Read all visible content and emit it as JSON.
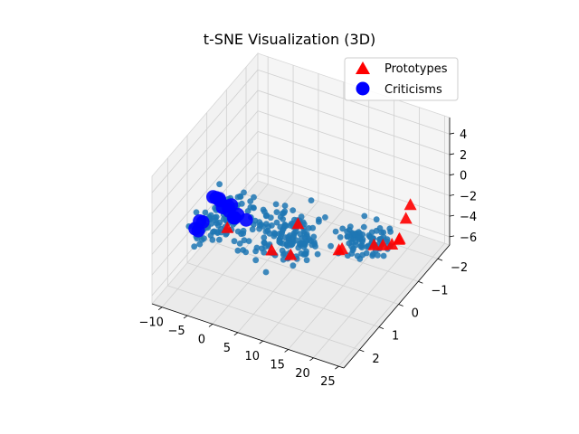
{
  "chart_data": {
    "type": "scatter",
    "projection": "3d",
    "title": "t-SNE Visualization (3D)",
    "xlabel": "",
    "ylabel": "",
    "zlabel": "",
    "xlim": [
      -12,
      26
    ],
    "ylim": [
      -2.6,
      2.8
    ],
    "zlim": [
      -6.8,
      5.6
    ],
    "xticks": [
      "−10",
      "−5",
      "0",
      "5",
      "10",
      "15",
      "20",
      "25"
    ],
    "xtick_values": [
      -10,
      -5,
      0,
      5,
      10,
      15,
      20,
      25
    ],
    "yticks": [
      "−2",
      "−1",
      "0",
      "1",
      "2"
    ],
    "ytick_values": [
      -2,
      -1,
      0,
      1,
      2
    ],
    "zticks": [
      "−6",
      "−4",
      "−2",
      "0",
      "2",
      "4"
    ],
    "ztick_values": [
      -6,
      -4,
      -2,
      0,
      2,
      4
    ],
    "grid": true,
    "legend_position": "top-right",
    "colors": {
      "points": "#1f77b4",
      "prototypes": "#ff0000",
      "criticisms": "#0000ff"
    },
    "legend": [
      {
        "label": "Prototypes",
        "marker": "triangle",
        "color": "#ff0000"
      },
      {
        "label": "Criticisms",
        "marker": "circle",
        "color": "#0000ff"
      }
    ],
    "series": [
      {
        "name": "Prototypes",
        "marker": "triangle",
        "points": [
          [
            -6,
            0.5,
            -3.5
          ],
          [
            2,
            0.3,
            -4.8
          ],
          [
            5,
            0.1,
            -5.2
          ],
          [
            13,
            -0.3,
            -4.3
          ],
          [
            14,
            -0.2,
            -3.8
          ],
          [
            18,
            -0.8,
            -4.1
          ],
          [
            19,
            -1.0,
            -4.4
          ],
          [
            20,
            -1.2,
            -4.6
          ],
          [
            21,
            -1.3,
            -4.2
          ],
          [
            21.5,
            -1.2,
            -3.8
          ],
          [
            22,
            -1.4,
            -2.2
          ],
          [
            22.5,
            -1.5,
            -1.0
          ],
          [
            8,
            0.5,
            -0.8
          ]
        ]
      },
      {
        "name": "Criticisms",
        "marker": "circle",
        "points": [
          [
            -8.5,
            1.5,
            -1.8
          ],
          [
            -8,
            1.4,
            -1.2
          ],
          [
            -7.5,
            1.6,
            -1.6
          ],
          [
            -7,
            1.5,
            -0.9
          ],
          [
            -3,
            2.0,
            3.3
          ],
          [
            -2.5,
            1.8,
            2.6
          ],
          [
            -2,
            2.1,
            3.6
          ],
          [
            -1.5,
            1.9,
            2.3
          ],
          [
            -1,
            2.2,
            3.9
          ],
          [
            -1,
            1.7,
            1.6
          ],
          [
            0,
            2.0,
            2.9
          ],
          [
            0.5,
            1.8,
            1.4
          ],
          [
            1,
            2.1,
            3.4
          ],
          [
            1.5,
            1.9,
            2.1
          ],
          [
            2,
            1.6,
            1.0
          ],
          [
            -0.5,
            1.6,
            0.8
          ]
        ]
      }
    ]
  }
}
